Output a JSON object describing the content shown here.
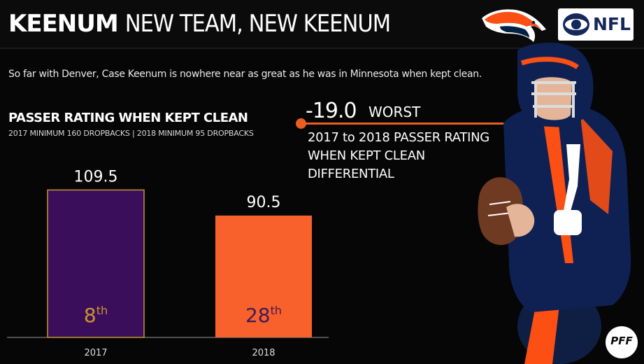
{
  "header": {
    "title_bold": "KEENUM",
    "title_rest": "NEW TEAM, NEW KEENUM",
    "logos": [
      "broncos-logo",
      "cbs-eye-icon",
      "nfl-badge"
    ],
    "nfl_label": "NFL"
  },
  "intro": "So far with Denver, Case Keenum is nowhere near as great as he was in Minnesota when kept clean.",
  "callout": {
    "value": "-19.0",
    "rank": "WORST",
    "description_line1": "2017 to 2018 PASSER RATING",
    "description_line2": "WHEN KEPT CLEAN DIFFERENTIAL"
  },
  "colors": {
    "bar_2017": "#3b0e5c",
    "bar_2017_border": "#c8962e",
    "bar_2018": "#f8612c",
    "rank_2017_text": "#c8962e",
    "rank_2018_text": "#3d1b55",
    "accent": "#ea5d23",
    "background": "#060606"
  },
  "chart_data": {
    "type": "bar",
    "title": "PASSER RATING WHEN KEPT CLEAN",
    "subtitle": "2017 MINIMUM 160 DROPBACKS | 2018 MINIMUM 95 DROPBACKS",
    "categories": [
      "2017",
      "2018"
    ],
    "values": [
      109.5,
      90.5
    ],
    "value_labels": [
      "109.5",
      "90.5"
    ],
    "rank_labels": [
      {
        "number": "8",
        "suffix": "th"
      },
      {
        "number": "28",
        "suffix": "th"
      }
    ],
    "ylim": [
      0,
      140
    ],
    "grid": false,
    "legend": "none"
  },
  "pff_label": "PFF"
}
